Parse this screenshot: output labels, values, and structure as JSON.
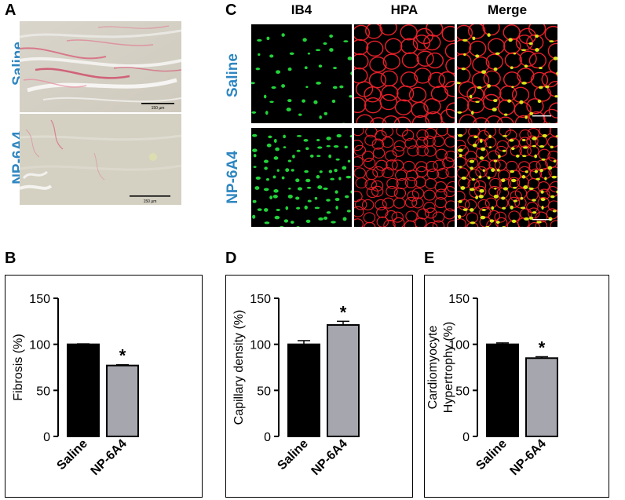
{
  "panel_a": {
    "letter": "A",
    "rows": [
      {
        "label": "Saline",
        "scale": "150 µm"
      },
      {
        "label": "NP-6A4",
        "scale": "150 µm"
      }
    ]
  },
  "panel_c": {
    "letter": "C",
    "columns": [
      "IB4",
      "HPA",
      "Merge"
    ],
    "rows": [
      "Saline",
      "NP-6A4"
    ]
  },
  "colors": {
    "label_blue": "#2E86C1",
    "saline_bar": "#000000",
    "np_bar": "#A6A6AE",
    "green_stain": "#22d33a",
    "red_stain": "#e8202a"
  },
  "chart_data": [
    {
      "panel": "B",
      "type": "bar",
      "categories": [
        "Saline",
        "NP-6A4"
      ],
      "values": [
        100,
        77
      ],
      "errors": [
        0.5,
        0.8
      ],
      "ylabel": [
        "Fibrosis (%)"
      ],
      "ylim": [
        0,
        150
      ],
      "yticks": [
        0,
        50,
        100,
        150
      ],
      "significance": [
        "",
        "*"
      ]
    },
    {
      "panel": "D",
      "type": "bar",
      "categories": [
        "Saline",
        "NP-6A4"
      ],
      "values": [
        100,
        121
      ],
      "errors": [
        4,
        4
      ],
      "ylabel": [
        "Capillary density (%)"
      ],
      "ylim": [
        0,
        150
      ],
      "yticks": [
        0,
        50,
        100,
        150
      ],
      "significance": [
        "",
        "*"
      ]
    },
    {
      "panel": "E",
      "type": "bar",
      "categories": [
        "Saline",
        "NP-6A4"
      ],
      "values": [
        100,
        85
      ],
      "errors": [
        1.5,
        1.5
      ],
      "ylabel": [
        "Cardiomyocyte",
        "Hypertrophy (%)"
      ],
      "ylim": [
        0,
        150
      ],
      "yticks": [
        0,
        50,
        100,
        150
      ],
      "significance": [
        "",
        "*"
      ]
    }
  ]
}
